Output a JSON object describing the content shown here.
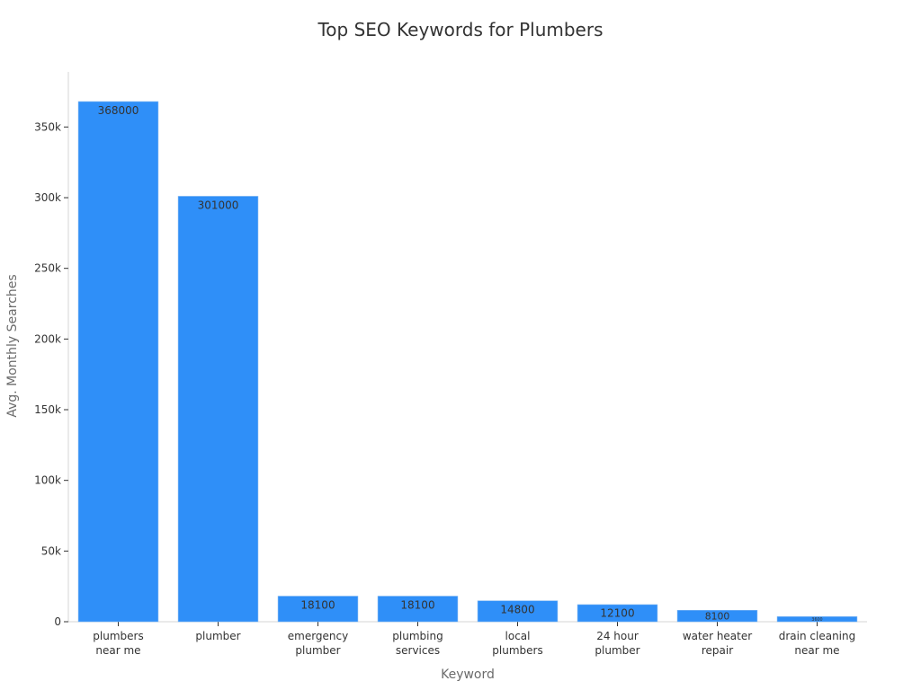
{
  "chart_data": {
    "type": "bar",
    "title": "Top SEO Keywords for Plumbers",
    "xlabel": "Keyword",
    "ylabel": "Avg. Monthly Searches",
    "categories": [
      [
        "plumbers",
        "near me"
      ],
      [
        "plumber"
      ],
      [
        "emergency",
        "plumber"
      ],
      [
        "plumbing",
        "services"
      ],
      [
        "local",
        "plumbers"
      ],
      [
        "24 hour",
        "plumber"
      ],
      [
        "water heater",
        "repair"
      ],
      [
        "drain cleaning",
        "near me"
      ]
    ],
    "values": [
      368000,
      301000,
      18100,
      18100,
      14800,
      12100,
      8100,
      3600
    ],
    "data_labels": [
      "368000",
      "301000",
      "18100",
      "18100",
      "14800",
      "12100",
      "8100",
      "3600"
    ],
    "yticks": [
      0,
      50000,
      100000,
      150000,
      200000,
      250000,
      300000,
      350000
    ],
    "ytick_labels": [
      "0",
      "50k",
      "100k",
      "150k",
      "200k",
      "250k",
      "300k",
      "350k"
    ],
    "ylim": [
      0,
      389000
    ],
    "bar_color": "#2f8ff8",
    "grid": false,
    "legend": "none"
  }
}
